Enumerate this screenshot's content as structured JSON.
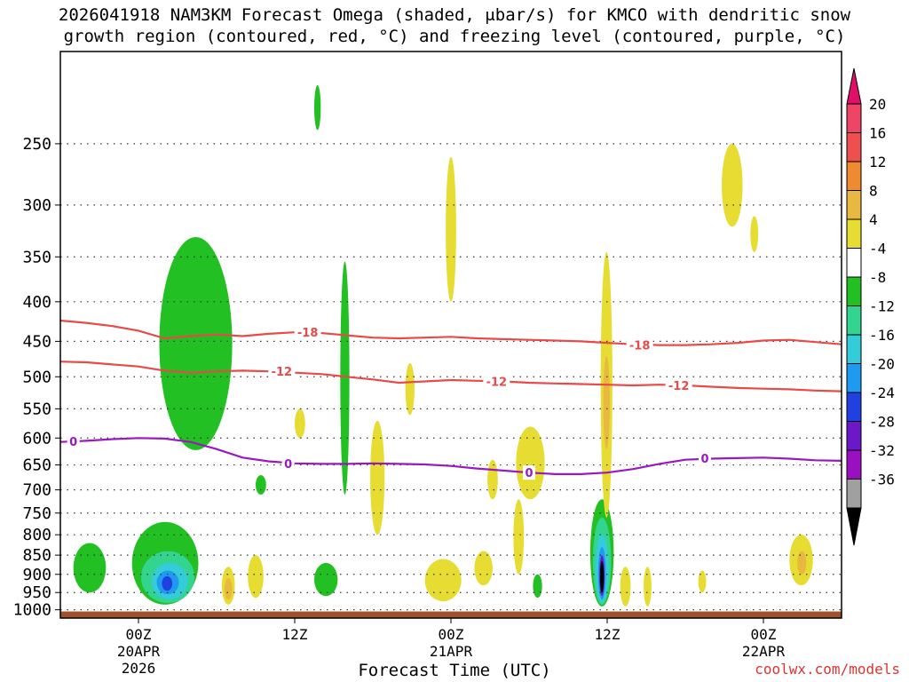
{
  "title_line1": "2026041918 NAM3KM Forecast Omega (shaded, μbar/s) for KMCO with dendritic snow",
  "title_line2": "growth region (contoured, red, °C) and freezing level (contoured, purple, °C)",
  "credit": "coolwx.com/models",
  "chart_data": {
    "type": "heatmap",
    "title": "2026041918 NAM3KM Forecast Omega (shaded, μbar/s) for KMCO with dendritic snow growth region (contoured, red, °C) and freezing level (contoured, purple, °C)",
    "xlabel": "Forecast Time (UTC)",
    "ylabel": "",
    "x_range_hours": [
      -6,
      54
    ],
    "y_range_hPa": [
      190,
      1025
    ],
    "y_scale": "log",
    "grid": true,
    "x_ticks": [
      {
        "hour": 0,
        "label": "00Z",
        "date": "20APR",
        "year": "2026"
      },
      {
        "hour": 12,
        "label": "12Z",
        "date": "",
        "year": ""
      },
      {
        "hour": 24,
        "label": "00Z",
        "date": "21APR",
        "year": ""
      },
      {
        "hour": 36,
        "label": "12Z",
        "date": "",
        "year": ""
      },
      {
        "hour": 48,
        "label": "00Z",
        "date": "22APR",
        "year": ""
      }
    ],
    "y_ticks": [
      250,
      300,
      350,
      400,
      450,
      500,
      550,
      600,
      650,
      700,
      750,
      800,
      850,
      900,
      950,
      1000
    ],
    "colorbar": {
      "labels": [
        "20",
        "16",
        "12",
        "8",
        "4",
        "-4",
        "-8",
        "-12",
        "-16",
        "-20",
        "-24",
        "-28",
        "-32",
        "-36"
      ],
      "colors": [
        "#ee4466",
        "#ee5050",
        "#ee8a30",
        "#e9b840",
        "#e6dc32",
        "#ffffff",
        "#22c022",
        "#33d490",
        "#33ccd8",
        "#1e9bf0",
        "#2040e0",
        "#6a18c8",
        "#9a10c0",
        "#a0a0a0"
      ],
      "top_arrow": "#e0106a",
      "bottom_arrow": "#000000"
    },
    "contours": [
      {
        "label": "-18",
        "color": "#e84a4a",
        "points": [
          [
            -6,
            423
          ],
          [
            -4,
            426
          ],
          [
            -2,
            430
          ],
          [
            0,
            436
          ],
          [
            2,
            446
          ],
          [
            4,
            443
          ],
          [
            6,
            441
          ],
          [
            8,
            443
          ],
          [
            10,
            440
          ],
          [
            12,
            438
          ],
          [
            14,
            439
          ],
          [
            16,
            442
          ],
          [
            18,
            445
          ],
          [
            20,
            446
          ],
          [
            22,
            445
          ],
          [
            24,
            444
          ],
          [
            26,
            446
          ],
          [
            28,
            447
          ],
          [
            30,
            448
          ],
          [
            32,
            449
          ],
          [
            34,
            450
          ],
          [
            36,
            452
          ],
          [
            38,
            454
          ],
          [
            40,
            455
          ],
          [
            42,
            455
          ],
          [
            44,
            454
          ],
          [
            46,
            452
          ],
          [
            48,
            449
          ],
          [
            50,
            448
          ],
          [
            52,
            451
          ],
          [
            54,
            454
          ]
        ],
        "label_at": [
          13,
          438
        ]
      },
      {
        "label": "-12",
        "color": "#e84a4a",
        "points": [
          [
            -6,
            478
          ],
          [
            -4,
            479
          ],
          [
            -2,
            482
          ],
          [
            0,
            485
          ],
          [
            2,
            491
          ],
          [
            4,
            494
          ],
          [
            6,
            492
          ],
          [
            8,
            491
          ],
          [
            10,
            492
          ],
          [
            12,
            494
          ],
          [
            14,
            496
          ],
          [
            16,
            500
          ],
          [
            18,
            504
          ],
          [
            20,
            509
          ],
          [
            22,
            507
          ],
          [
            24,
            505
          ],
          [
            26,
            506
          ],
          [
            28,
            507
          ],
          [
            30,
            509
          ],
          [
            32,
            510
          ],
          [
            34,
            511
          ],
          [
            36,
            512
          ],
          [
            38,
            513
          ],
          [
            40,
            512
          ],
          [
            42,
            513
          ],
          [
            44,
            515
          ],
          [
            46,
            517
          ],
          [
            48,
            518
          ],
          [
            50,
            519
          ],
          [
            52,
            521
          ],
          [
            54,
            522
          ]
        ],
        "label_at": [
          11,
          492
        ]
      },
      {
        "label": "-12",
        "color": "#e84a4a",
        "points": [],
        "label_at": [
          27.5,
          507
        ]
      },
      {
        "label": "-12",
        "color": "#e84a4a",
        "points": [],
        "label_at": [
          41.5,
          513
        ]
      },
      {
        "label": "-18",
        "color": "#e84a4a",
        "points": [],
        "label_at": [
          38.5,
          455
        ]
      },
      {
        "label": "0",
        "color": "#9a18c0",
        "points": [
          [
            -6,
            607
          ],
          [
            -4,
            605
          ],
          [
            -2,
            602
          ],
          [
            0,
            600
          ],
          [
            2,
            601
          ],
          [
            4,
            607
          ],
          [
            6,
            620
          ],
          [
            8,
            636
          ],
          [
            10,
            643
          ],
          [
            12,
            647
          ],
          [
            14,
            648
          ],
          [
            16,
            648
          ],
          [
            18,
            647
          ],
          [
            20,
            648
          ],
          [
            22,
            649
          ],
          [
            24,
            652
          ],
          [
            26,
            657
          ],
          [
            28,
            661
          ],
          [
            30,
            665
          ],
          [
            32,
            668
          ],
          [
            34,
            668
          ],
          [
            36,
            665
          ],
          [
            38,
            658
          ],
          [
            40,
            648
          ],
          [
            42,
            640
          ],
          [
            44,
            638
          ],
          [
            46,
            637
          ],
          [
            48,
            636
          ],
          [
            50,
            638
          ],
          [
            52,
            641
          ],
          [
            54,
            642
          ]
        ],
        "label_at": [
          -5,
          606
        ]
      },
      {
        "label": "0",
        "color": "#9a18c0",
        "points": [],
        "label_at": [
          11.5,
          647
        ]
      },
      {
        "label": "0",
        "color": "#9a18c0",
        "points": [],
        "label_at": [
          30,
          665
        ]
      },
      {
        "label": "0",
        "color": "#9a18c0",
        "points": [],
        "label_at": [
          43.5,
          637
        ]
      }
    ],
    "shaded_regions": [
      {
        "band": "-8",
        "color": "#22c022",
        "hour_range": [
          1.6,
          7.2
        ],
        "p_range": [
          330,
          622
        ]
      },
      {
        "band": "-8",
        "color": "#22c022",
        "hour_range": [
          -5,
          -2.5
        ],
        "p_range": [
          820,
          950
        ]
      },
      {
        "band": "-8",
        "color": "#22c022",
        "hour_range": [
          -0.5,
          4.6
        ],
        "p_range": [
          770,
          985
        ]
      },
      {
        "band": "-12",
        "color": "#33d490",
        "hour_range": [
          0.2,
          4.3
        ],
        "p_range": [
          840,
          980
        ]
      },
      {
        "band": "-16",
        "color": "#33ccd8",
        "hour_range": [
          1.0,
          3.8
        ],
        "p_range": [
          870,
          970
        ]
      },
      {
        "band": "-20",
        "color": "#1e9bf0",
        "hour_range": [
          1.4,
          3.1
        ],
        "p_range": [
          890,
          955
        ]
      },
      {
        "band": "-24",
        "color": "#2040e0",
        "hour_range": [
          1.8,
          2.6
        ],
        "p_range": [
          905,
          945
        ]
      },
      {
        "band": "-8",
        "color": "#22c022",
        "hour_range": [
          15.5,
          16.2
        ],
        "p_range": [
          355,
          710
        ]
      },
      {
        "band": "-8",
        "color": "#22c022",
        "hour_range": [
          13.5,
          14.0
        ],
        "p_range": [
          210,
          240
        ]
      },
      {
        "band": "-8",
        "color": "#22c022",
        "hour_range": [
          9,
          9.8
        ],
        "p_range": [
          670,
          710
        ]
      },
      {
        "band": "-8",
        "color": "#22c022",
        "hour_range": [
          13.5,
          15.3
        ],
        "p_range": [
          870,
          960
        ]
      },
      {
        "band": "-8",
        "color": "#22c022",
        "hour_range": [
          30.3,
          31.0
        ],
        "p_range": [
          900,
          965
        ]
      },
      {
        "band": "-8",
        "color": "#22c022",
        "hour_range": [
          34.7,
          36.5
        ],
        "p_range": [
          720,
          990
        ]
      },
      {
        "band": "-12",
        "color": "#33d490",
        "hour_range": [
          34.9,
          36.3
        ],
        "p_range": [
          760,
          985
        ]
      },
      {
        "band": "-16",
        "color": "#33ccd8",
        "hour_range": [
          35.1,
          36.1
        ],
        "p_range": [
          800,
          980
        ]
      },
      {
        "band": "-20",
        "color": "#1e9bf0",
        "hour_range": [
          35.3,
          35.9
        ],
        "p_range": [
          830,
          970
        ]
      },
      {
        "band": "-28",
        "color": "#6a18c8",
        "hour_range": [
          35.4,
          35.8
        ],
        "p_range": [
          850,
          960
        ]
      },
      {
        "band": "-36",
        "color": "#000000",
        "hour_range": [
          35.45,
          35.75
        ],
        "p_range": [
          865,
          950
        ]
      },
      {
        "band": "4",
        "color": "#e6dc32",
        "hour_range": [
          23.6,
          24.4
        ],
        "p_range": [
          260,
          400
        ]
      },
      {
        "band": "4",
        "color": "#e6dc32",
        "hour_range": [
          20.5,
          21.2
        ],
        "p_range": [
          480,
          560
        ]
      },
      {
        "band": "4",
        "color": "#e6dc32",
        "hour_range": [
          35.5,
          36.4
        ],
        "p_range": [
          345,
          760
        ]
      },
      {
        "band": "8",
        "color": "#e9b840",
        "hour_range": [
          35.7,
          36.2
        ],
        "p_range": [
          470,
          620
        ]
      },
      {
        "band": "4",
        "color": "#e6dc32",
        "hour_range": [
          44.8,
          46.4
        ],
        "p_range": [
          250,
          320
        ]
      },
      {
        "band": "4",
        "color": "#e6dc32",
        "hour_range": [
          47.0,
          47.6
        ],
        "p_range": [
          310,
          345
        ]
      },
      {
        "band": "4",
        "color": "#e6dc32",
        "hour_range": [
          29.0,
          31.2
        ],
        "p_range": [
          580,
          720
        ]
      },
      {
        "band": "4",
        "color": "#e6dc32",
        "hour_range": [
          28.8,
          29.6
        ],
        "p_range": [
          720,
          900
        ]
      },
      {
        "band": "4",
        "color": "#e6dc32",
        "hour_range": [
          26.8,
          27.6
        ],
        "p_range": [
          640,
          720
        ]
      },
      {
        "band": "4",
        "color": "#e6dc32",
        "hour_range": [
          17.8,
          18.9
        ],
        "p_range": [
          570,
          800
        ]
      },
      {
        "band": "4",
        "color": "#e6dc32",
        "hour_range": [
          12.0,
          12.8
        ],
        "p_range": [
          550,
          600
        ]
      },
      {
        "band": "4",
        "color": "#e6dc32",
        "hour_range": [
          6.4,
          7.4
        ],
        "p_range": [
          880,
          985
        ]
      },
      {
        "band": "8",
        "color": "#e9b840",
        "hour_range": [
          6.6,
          7.2
        ],
        "p_range": [
          910,
          970
        ]
      },
      {
        "band": "4",
        "color": "#e6dc32",
        "hour_range": [
          8.4,
          9.6
        ],
        "p_range": [
          850,
          965
        ]
      },
      {
        "band": "4",
        "color": "#e6dc32",
        "hour_range": [
          22.0,
          24.8
        ],
        "p_range": [
          860,
          975
        ]
      },
      {
        "band": "4",
        "color": "#e6dc32",
        "hour_range": [
          25.8,
          27.2
        ],
        "p_range": [
          840,
          930
        ]
      },
      {
        "band": "4",
        "color": "#e6dc32",
        "hour_range": [
          37.0,
          37.8
        ],
        "p_range": [
          880,
          990
        ]
      },
      {
        "band": "4",
        "color": "#e6dc32",
        "hour_range": [
          38.8,
          39.4
        ],
        "p_range": [
          880,
          990
        ]
      },
      {
        "band": "4",
        "color": "#e6dc32",
        "hour_range": [
          50.0,
          51.8
        ],
        "p_range": [
          800,
          930
        ]
      },
      {
        "band": "8",
        "color": "#e9b840",
        "hour_range": [
          50.6,
          51.3
        ],
        "p_range": [
          840,
          900
        ]
      },
      {
        "band": "4",
        "color": "#e6dc32",
        "hour_range": [
          43.0,
          43.6
        ],
        "p_range": [
          890,
          950
        ]
      }
    ],
    "surface_fill": {
      "color": "#a0522d",
      "p_from": 1005
    }
  }
}
